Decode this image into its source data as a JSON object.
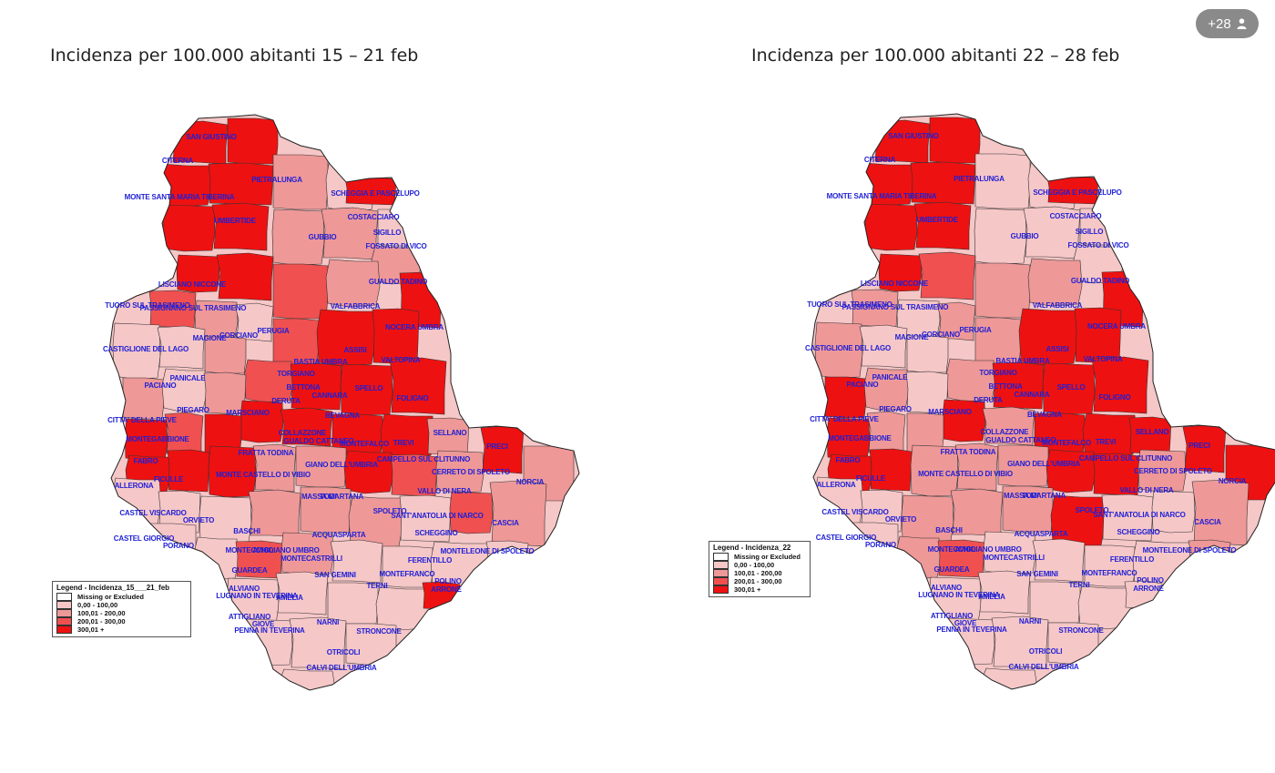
{
  "badge": {
    "label": "+28",
    "icon": "person-icon"
  },
  "colors": {
    "class0": "#ffffff",
    "class1": "#f6c7c7",
    "class2": "#ee9898",
    "class3": "#f05050",
    "class4": "#ee1111",
    "border": "#333333",
    "label": "#1f1fd6"
  },
  "maps": [
    {
      "title": "Incidenza per 100.000 abitanti 15 – 21 feb",
      "legend": {
        "title": "Legend - Incidenza_15___21_feb",
        "items": [
          "Missing or Excluded",
          "0,00 - 100,00",
          "100,01 - 200,00",
          "200,01 - 300,00",
          "300,01 +"
        ]
      },
      "labels": [
        "SAN GIUSTINO",
        "CITERNA",
        "MONTE SANTA MARIA TIBERINA",
        "PIETRALUNGA",
        "SCHEGGIA E PASCELUPO",
        "COSTACCIARO",
        "GUBBIO",
        "SIGILLO",
        "FOSSATO DI VICO",
        "UMBERTIDE",
        "LISCIANO NICCONE",
        "GUALDO TADINO",
        "TUORO SUL TRASIMENO",
        "PASSIGNANO SUL TRASIMENO",
        "VALFABBRICA",
        "MAGIONE",
        "CORCIANO",
        "PERUGIA",
        "NOCERA UMBRA",
        "CASTIGLIONE DEL LAGO",
        "ASSISI",
        "VALTOPINA",
        "BASTIA UMBRA",
        "TORGIANO",
        "PANICALE",
        "PACIANO",
        "BETTONA",
        "CANNARA",
        "SPELLO",
        "FOLIGNO",
        "PIEGARO",
        "DERUTA",
        "MARSCIANO",
        "CITTA' DELLA PIEVE",
        "BEVAGNA",
        "COLLAZZONE",
        "GUALDO CATTANEO",
        "MONTEGABBIONE",
        "MONTEFALCO",
        "TREVI",
        "SELLANO",
        "PRECI",
        "FABRO",
        "FRATTA TODINA",
        "CAMPELLO SUL CLITUNNO",
        "ALLERONA",
        "MONTE CASTELLO DI VIBIO",
        "GIANO DELL'UMBRIA",
        "CERRETO DI SPOLETO",
        "NORCIA",
        "FICULLE",
        "VALLO DI NERA",
        "CASTEL VISCARDO",
        "TODI",
        "MASSA MARTANA",
        "SPOLETO",
        "SANT'ANATOLIA DI NARCO",
        "ORVIETO",
        "BASCHI",
        "SCHEGGINO",
        "CASCIA",
        "CASTEL GIORGIO",
        "PORANO",
        "MONTECCHIO",
        "ACQUASPARTA",
        "MONTELEONE DI SPOLETO",
        "AVIGLIANO UMBRO",
        "MONTECASTRILLI",
        "FERENTILLO",
        "GUARDEA",
        "SAN GEMINI",
        "MONTEFRANCO",
        "ALVIANO",
        "TERNI",
        "ARRONE",
        "LUGNANO IN TEVERINA",
        "AMELIA",
        "POLINO",
        "ATTIGLIANO",
        "GIOVE",
        "NARNI",
        "PENNA IN TEVERINA",
        "STRONCONE",
        "OTRICOLI",
        "CALVI DELL'UMBRIA"
      ]
    },
    {
      "title": "Incidenza per 100.000 abitanti 22 – 28 feb",
      "legend": {
        "title": "Legend - Incidenza_22",
        "items": [
          "Missing or Excluded",
          "0,00 - 100,00",
          "100,01 - 200,00",
          "200,01 - 300,00",
          "300,01 +"
        ]
      },
      "labels": [
        "SAN GIUSTINO",
        "CITERNA",
        "MONTE SANTA MARIA TIBERINA",
        "PIETRALUNGA",
        "SCHEGGIA E PASCELUPO",
        "COSTACCIARO",
        "GUBBIO",
        "SIGILLO",
        "FOSSATO DI VICO",
        "UMBERTIDE",
        "LISCIANO NICCONE",
        "GUALDO TADINO",
        "TUORO SUL TRASIMENO",
        "PASSIGNANO SUL TRASIMENO",
        "VALFABBRICA",
        "MAGIONE",
        "CORCIANO",
        "PERUGIA",
        "NOCERA UMBRA",
        "CASTIGLIONE DEL LAGO",
        "ASSISI",
        "VALTOPINA",
        "BASTIA UMBRA",
        "TORGIANO",
        "PANICALE",
        "PACIANO",
        "BETTONA",
        "CANNARA",
        "SPELLO",
        "FOLIGNO",
        "PIEGARO",
        "DERUTA",
        "MARSCIANO",
        "CITTA' DELLA PIEVE",
        "BEVAGNA",
        "COLLAZZONE",
        "GUALDO CATTANEO",
        "MONTEGABBIONE",
        "MONTEFALCO",
        "TREVI",
        "SELLANO",
        "PRECI",
        "FABRO",
        "FRATTA TODINA",
        "CAMPELLO SUL CLITUNNO",
        "ALLERONA",
        "MONTE CASTELLO DI VIBIO",
        "GIANO DELL'UMBRIA",
        "CERRETO DI SPOLETO",
        "NORCIA",
        "FICULLE",
        "VALLO DI NERA",
        "CASTEL VISCARDO",
        "TODI",
        "MASSA MARTANA",
        "SPOLETO",
        "SANT'ANATOLIA DI NARCO",
        "ORVIETO",
        "BASCHI",
        "SCHEGGINO",
        "CASCIA",
        "CASTEL GIORGIO",
        "PORANO",
        "MONTECCHIO",
        "ACQUASPARTA",
        "MONTELEONE DI SPOLETO",
        "AVIGLIANO UMBRO",
        "MONTECASTRILLI",
        "FERENTILLO",
        "GUARDEA",
        "SAN GEMINI",
        "MONTEFRANCO",
        "ALVIANO",
        "TERNI",
        "ARRONE",
        "LUGNANO IN TEVERINA",
        "AMELIA",
        "POLINO",
        "ATTIGLIANO",
        "GIOVE",
        "NARNI",
        "PENNA IN TEVERINA",
        "STRONCONE",
        "OTRICOLI",
        "CALVI DELL'UMBRIA"
      ]
    }
  ]
}
